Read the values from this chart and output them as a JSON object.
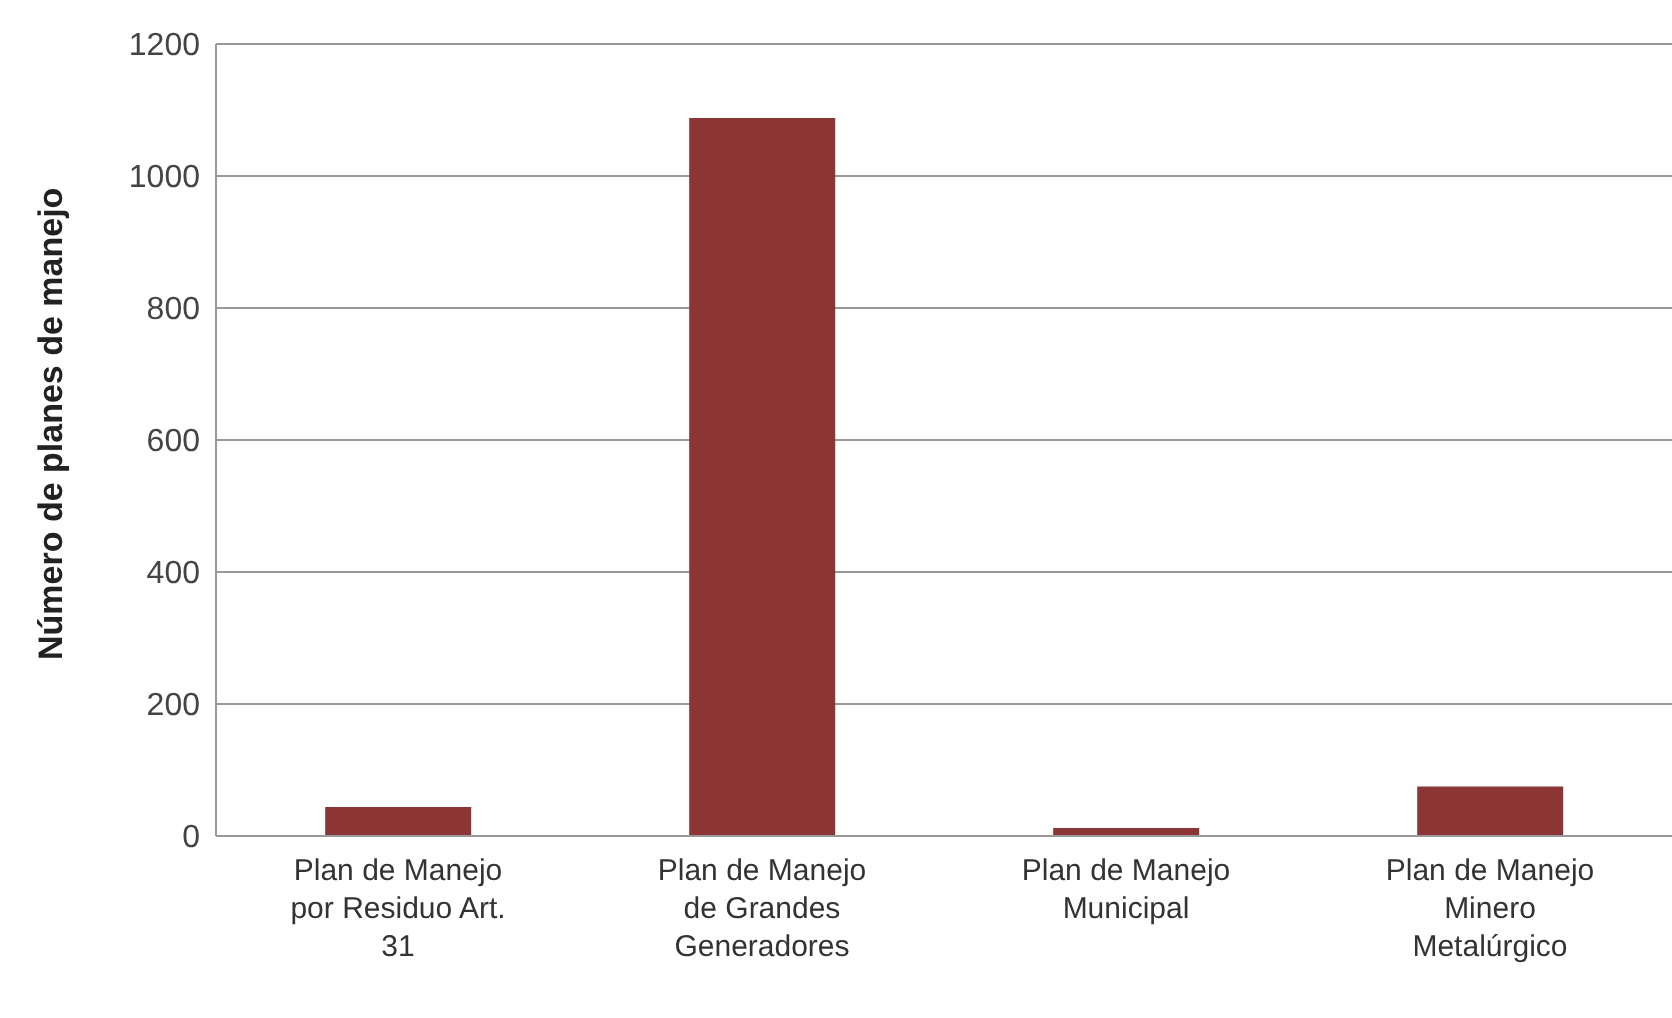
{
  "chart_data": {
    "type": "bar",
    "ylabel": "Número de planes de manejo",
    "categories": [
      "Plan de Manejo por Residuo Art. 31",
      "Plan de Manejo de Grandes Generadores",
      "Plan de Manejo Municipal",
      "Plan de Manejo Minero Metalúrgico"
    ],
    "values": [
      44,
      1088,
      12,
      75
    ],
    "color": "#8b3535",
    "ylim": [
      0,
      1200
    ],
    "yticks": [
      0,
      200,
      400,
      600,
      800,
      1000,
      1200
    ],
    "grid": "y"
  }
}
